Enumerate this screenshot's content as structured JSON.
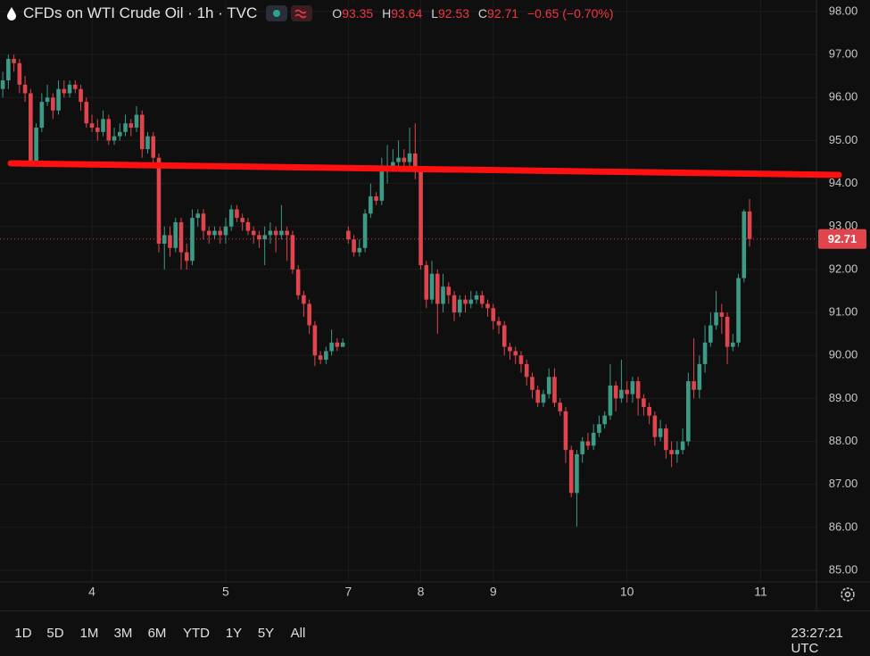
{
  "chart_data": {
    "type": "candlestick",
    "title": "CFDs on WTI Crude Oil · 1h · TVC",
    "ohlc_labels": [
      "O",
      "H",
      "L",
      "C"
    ],
    "change_label": "−0.65 (−0.70%)",
    "x": [
      0,
      1,
      2,
      3,
      4,
      5,
      6,
      7,
      8,
      9,
      10,
      11,
      12,
      13,
      14,
      15,
      16,
      17,
      18,
      19,
      20,
      21,
      22,
      23,
      24,
      25,
      26,
      27,
      28,
      29,
      30,
      31,
      32,
      33,
      34,
      35,
      36,
      37,
      38,
      39,
      40,
      41,
      42,
      43,
      44,
      45,
      46,
      47,
      48,
      49,
      50,
      51,
      52,
      53,
      54,
      55,
      56,
      57,
      58,
      59,
      60,
      61,
      62,
      63,
      64,
      65,
      66,
      67,
      68,
      69,
      70,
      71,
      72,
      73,
      74,
      75,
      76,
      77,
      78,
      79,
      80,
      81,
      82,
      83,
      84,
      85,
      86,
      87,
      88,
      89,
      90,
      91,
      92,
      93,
      94,
      95,
      96,
      97,
      98,
      99,
      100,
      101,
      102,
      103,
      104,
      105,
      106,
      107,
      108,
      109,
      110,
      111,
      112,
      113,
      114,
      115,
      116,
      117,
      118,
      119,
      120,
      121,
      122,
      123,
      124,
      125,
      126,
      127,
      128,
      129,
      130,
      131,
      132,
      133,
      134
    ],
    "open": [
      96.2,
      96.4,
      96.9,
      96.8,
      96.3,
      96.1,
      94.5,
      95.3,
      95.9,
      96.0,
      95.7,
      96.2,
      96.1,
      96.3,
      96.2,
      95.9,
      95.4,
      95.3,
      95.2,
      95.5,
      95.0,
      95.1,
      95.2,
      95.4,
      95.3,
      95.6,
      94.8,
      95.1,
      94.6,
      92.6,
      92.8,
      92.5,
      93.1,
      92.4,
      92.2,
      93.2,
      93.3,
      92.9,
      92.8,
      92.9,
      92.8,
      93.0,
      93.4,
      93.2,
      93.1,
      92.9,
      92.8,
      92.7,
      92.8,
      92.9,
      92.8,
      92.9,
      92.8,
      92.0,
      91.4,
      91.2,
      90.7,
      90.0,
      89.9,
      90.1,
      90.3,
      90.2,
      92.9,
      92.7,
      92.4,
      92.5,
      93.3,
      93.7,
      93.6,
      94.3,
      94.4,
      94.5,
      94.6,
      94.5,
      94.7,
      94.3,
      92.1,
      91.3,
      91.9,
      91.2,
      91.6,
      91.4,
      91.0,
      91.3,
      91.2,
      91.3,
      91.4,
      91.2,
      91.1,
      90.8,
      90.7,
      90.2,
      90.1,
      90.0,
      89.8,
      89.5,
      89.2,
      88.9,
      89.1,
      89.5,
      88.9,
      88.7,
      87.8,
      86.8,
      87.7,
      88.0,
      87.9,
      88.2,
      88.4,
      88.6,
      89.3,
      89.0,
      89.2,
      89.1,
      89.4,
      89.0,
      88.8,
      88.6,
      88.1,
      88.3,
      87.8,
      87.7,
      87.8,
      88.0,
      89.4,
      89.2,
      89.8,
      90.3,
      90.7,
      91.0,
      90.9,
      90.2,
      90.3,
      91.8,
      93.35
    ],
    "high": [
      96.6,
      97.0,
      97.0,
      96.9,
      96.5,
      96.2,
      95.4,
      96.1,
      96.3,
      96.1,
      96.4,
      96.4,
      96.4,
      96.4,
      96.3,
      96.0,
      95.6,
      95.5,
      95.7,
      95.6,
      95.3,
      95.4,
      95.6,
      95.5,
      95.8,
      95.7,
      95.2,
      95.2,
      94.7,
      93.0,
      93.0,
      93.2,
      93.2,
      92.6,
      93.4,
      93.4,
      93.4,
      93.0,
      93.0,
      93.0,
      93.2,
      93.5,
      93.5,
      93.3,
      93.2,
      93.0,
      92.9,
      93.0,
      93.1,
      93.0,
      93.5,
      93.0,
      92.9,
      92.1,
      91.5,
      91.3,
      90.8,
      90.1,
      90.2,
      90.6,
      90.4,
      90.4,
      93.0,
      92.8,
      92.7,
      93.4,
      94.0,
      93.8,
      94.6,
      94.9,
      94.8,
      95.0,
      94.8,
      95.3,
      95.4,
      94.4,
      92.2,
      92.2,
      92.0,
      91.9,
      91.7,
      91.5,
      91.4,
      91.4,
      91.5,
      91.5,
      91.5,
      91.3,
      91.2,
      90.9,
      90.8,
      90.3,
      90.2,
      90.1,
      89.9,
      89.6,
      89.3,
      89.2,
      89.7,
      89.7,
      89.0,
      88.8,
      87.9,
      87.8,
      88.1,
      88.2,
      88.4,
      88.6,
      88.7,
      89.8,
      89.4,
      89.9,
      89.4,
      89.5,
      89.5,
      89.1,
      88.9,
      88.7,
      88.5,
      88.4,
      88.0,
      88.0,
      88.3,
      89.6,
      90.4,
      90.0,
      90.7,
      91.0,
      91.5,
      91.2,
      91.0,
      90.5,
      91.9,
      93.4,
      93.64
    ],
    "low": [
      96.0,
      96.2,
      96.6,
      96.1,
      95.9,
      94.4,
      94.4,
      95.2,
      95.8,
      95.5,
      95.6,
      96.0,
      96.0,
      96.1,
      95.7,
      95.3,
      95.2,
      95.0,
      95.1,
      94.9,
      94.9,
      95.0,
      95.1,
      95.1,
      95.2,
      94.6,
      94.7,
      94.4,
      92.4,
      92.0,
      92.3,
      92.4,
      92.0,
      92.0,
      92.1,
      93.0,
      92.7,
      92.6,
      92.7,
      92.6,
      92.6,
      92.9,
      93.1,
      92.9,
      92.8,
      92.6,
      92.5,
      92.1,
      92.6,
      92.4,
      92.7,
      92.2,
      91.9,
      91.3,
      90.9,
      90.5,
      89.75,
      89.8,
      89.8,
      90.0,
      90.1,
      90.2,
      92.6,
      92.3,
      92.3,
      92.4,
      93.2,
      93.5,
      93.5,
      94.0,
      94.3,
      94.4,
      94.3,
      94.4,
      94.1,
      92.0,
      91.1,
      91.2,
      90.5,
      91.0,
      91.2,
      90.8,
      90.9,
      91.0,
      91.1,
      91.2,
      91.1,
      90.9,
      90.6,
      90.5,
      90.0,
      89.9,
      89.8,
      89.6,
      89.3,
      89.0,
      88.8,
      88.8,
      89.0,
      88.8,
      88.6,
      87.5,
      86.7,
      86.02,
      87.5,
      87.8,
      87.8,
      88.1,
      88.3,
      88.5,
      88.7,
      88.9,
      88.9,
      88.9,
      88.6,
      88.6,
      88.4,
      87.9,
      88.0,
      87.6,
      87.4,
      87.5,
      87.7,
      87.9,
      89.0,
      89.0,
      89.6,
      90.2,
      90.6,
      90.5,
      89.8,
      90.1,
      90.2,
      91.7,
      92.53
    ],
    "close": [
      96.4,
      96.9,
      96.8,
      96.3,
      96.1,
      94.5,
      95.3,
      95.9,
      96.0,
      95.7,
      96.2,
      96.1,
      96.3,
      96.2,
      95.9,
      95.4,
      95.3,
      95.2,
      95.5,
      95.0,
      95.1,
      95.2,
      95.4,
      95.3,
      95.6,
      94.8,
      95.1,
      94.6,
      92.6,
      92.8,
      92.5,
      93.1,
      92.4,
      92.2,
      93.2,
      93.3,
      92.9,
      92.8,
      92.9,
      92.8,
      93.0,
      93.4,
      93.2,
      93.1,
      92.9,
      92.8,
      92.7,
      92.8,
      92.9,
      92.8,
      92.9,
      92.8,
      92.0,
      91.4,
      91.2,
      90.7,
      90.0,
      89.9,
      90.1,
      90.3,
      90.2,
      90.3,
      92.7,
      92.4,
      92.5,
      93.3,
      93.7,
      93.6,
      94.3,
      94.4,
      94.5,
      94.6,
      94.5,
      94.7,
      94.3,
      92.1,
      91.3,
      91.9,
      91.2,
      91.6,
      91.4,
      91.0,
      91.3,
      91.2,
      91.3,
      91.4,
      91.2,
      91.1,
      90.8,
      90.7,
      90.2,
      90.1,
      90.0,
      89.8,
      89.5,
      89.2,
      88.9,
      89.1,
      89.5,
      88.9,
      88.7,
      87.8,
      86.8,
      87.7,
      88.0,
      87.9,
      88.2,
      88.4,
      88.6,
      89.3,
      89.0,
      89.2,
      89.1,
      89.4,
      89.0,
      88.8,
      88.6,
      88.1,
      88.3,
      87.8,
      87.7,
      87.8,
      88.0,
      89.4,
      89.2,
      89.8,
      90.3,
      90.7,
      91.0,
      90.9,
      90.2,
      90.3,
      91.8,
      93.35,
      92.71
    ],
    "up_color": "#3d9a86",
    "down_color": "#e0454d",
    "xlim": [
      -0.5,
      146
    ],
    "xticks": [
      {
        "value": 16,
        "label": "4"
      },
      {
        "value": 40,
        "label": "5"
      },
      {
        "value": 62,
        "label": "7"
      },
      {
        "value": 75,
        "label": "8"
      },
      {
        "value": 88,
        "label": "9"
      },
      {
        "value": 112,
        "label": "10"
      },
      {
        "value": 136,
        "label": "11"
      }
    ],
    "ylim": [
      84.73,
      98.27
    ],
    "yticks": [
      {
        "value": 85,
        "label": "85.00"
      },
      {
        "value": 86,
        "label": "86.00"
      },
      {
        "value": 87,
        "label": "87.00"
      },
      {
        "value": 88,
        "label": "88.00"
      },
      {
        "value": 89,
        "label": "89.00"
      },
      {
        "value": 90,
        "label": "90.00"
      },
      {
        "value": 91,
        "label": "91.00"
      },
      {
        "value": 92,
        "label": "92.00"
      },
      {
        "value": 93,
        "label": "93.00"
      },
      {
        "value": 94,
        "label": "94.00"
      },
      {
        "value": 95,
        "label": "95.00"
      },
      {
        "value": 96,
        "label": "96.00"
      },
      {
        "value": 97,
        "label": "97.00"
      },
      {
        "value": 98,
        "label": "98.00"
      }
    ],
    "grid": true,
    "trend_line": {
      "start": 94.47,
      "end": 94.2,
      "color": "#ff1010"
    }
  },
  "toolbar": {
    "ranges": [
      "1D",
      "5D",
      "1M",
      "3M",
      "6M",
      "YTD",
      "1Y",
      "5Y",
      "All"
    ],
    "time": "23:27:21 UTC"
  }
}
